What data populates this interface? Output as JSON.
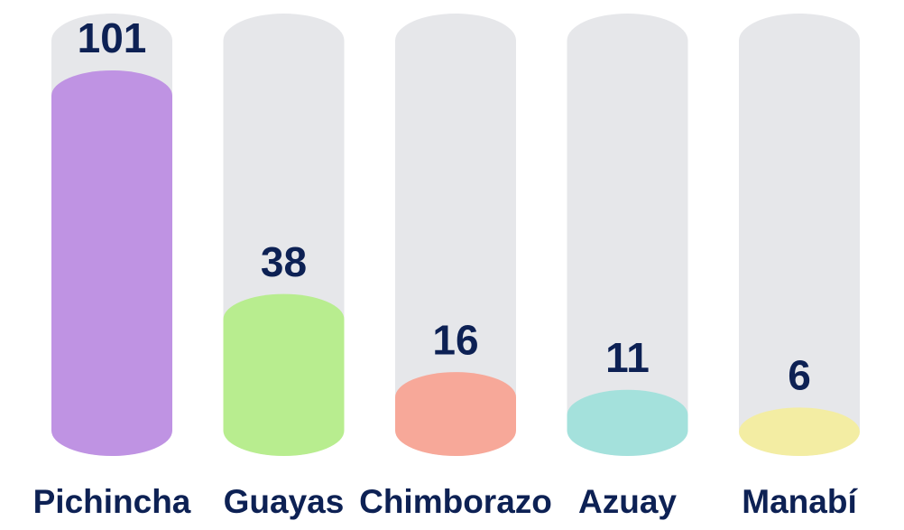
{
  "chart_data": {
    "type": "bar",
    "categories": [
      "Pichincha",
      "Guayas",
      "Chimborazo",
      "Azuay",
      "Manabí"
    ],
    "values": [
      101,
      38,
      16,
      11,
      6
    ],
    "colors": [
      "#bf93e3",
      "#b8ed8f",
      "#f7a899",
      "#a4e1dc",
      "#f3eda3"
    ]
  }
}
